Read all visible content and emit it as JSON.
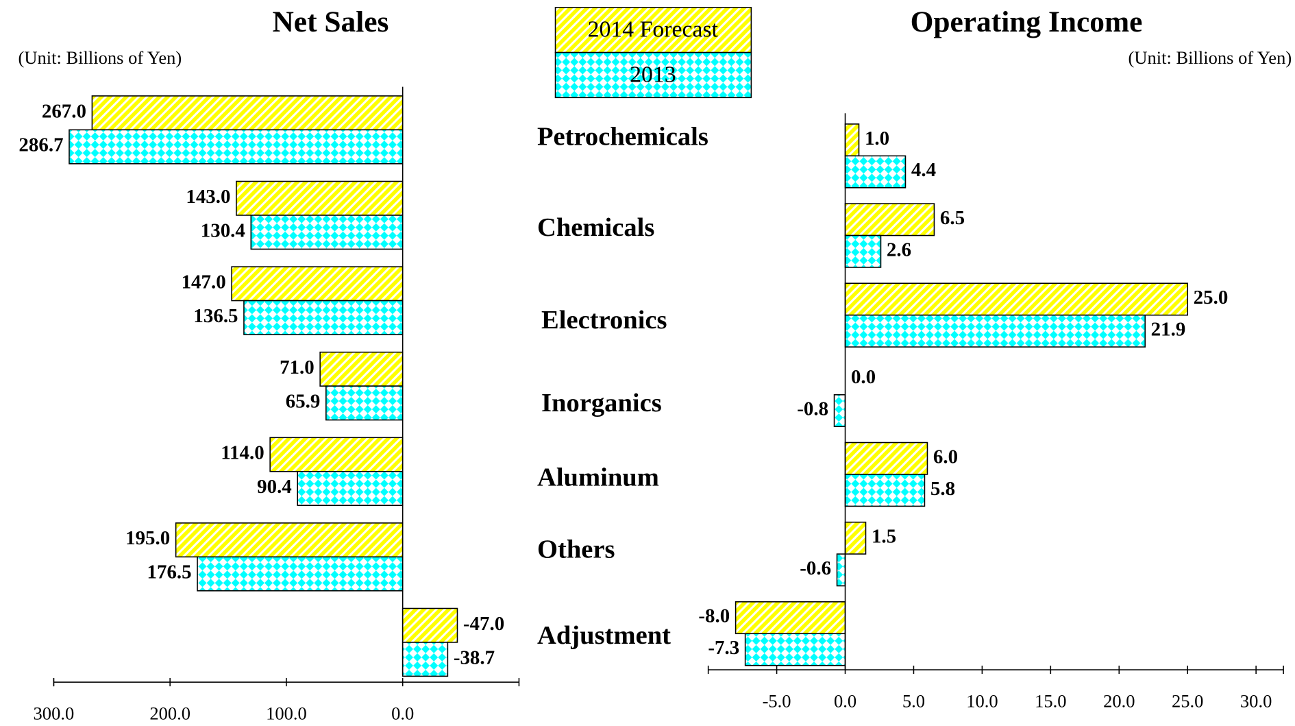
{
  "chart_data": [
    {
      "type": "barh",
      "title": "Net Sales",
      "subtitle": "(Unit: Billions of Yen)",
      "categories": [
        "Petrochemicals",
        "Chemicals",
        "Electronics",
        "Inorganics",
        "Aluminum",
        "Others",
        "Adjustment"
      ],
      "series": [
        {
          "name": "2014 Forecast",
          "color": "#ffff00",
          "pattern": "hatch",
          "values": [
            267,
            143,
            147,
            71,
            114,
            195,
            -47
          ],
          "value_labels": [
            "267.0",
            "143.0",
            "147.0",
            "71.0",
            "114.0",
            "195.0",
            "-47.0"
          ]
        },
        {
          "name": "2013",
          "color": "#00ffff",
          "pattern": "diamond",
          "values": [
            286.7,
            130.4,
            136.5,
            65.9,
            90.4,
            176.5,
            -38.7
          ],
          "value_labels": [
            "286.7",
            "130.4",
            "136.5",
            "65.9",
            "90.4",
            "176.5",
            "-38.7"
          ]
        }
      ],
      "xlim": [
        300,
        -100
      ],
      "xticks": [
        {
          "value": 300,
          "label": "300.0"
        },
        {
          "value": 200,
          "label": "200.0"
        },
        {
          "value": 100,
          "label": "100.0"
        },
        {
          "value": 0,
          "label": "0.0"
        }
      ]
    },
    {
      "type": "barh",
      "title": "Operating Income",
      "subtitle": "(Unit: Billions of Yen)",
      "series": [
        {
          "color": "#ffff00",
          "pattern": "hatch",
          "values": [
            1,
            6.5,
            25,
            0,
            6,
            1.5,
            -8
          ],
          "value_labels": [
            "1.0",
            "6.5",
            "25.0",
            "0.0",
            "6.0",
            "1.5",
            "-8.0"
          ]
        },
        {
          "color": "#00ffff",
          "pattern": "diamond",
          "values": [
            4.4,
            2.6,
            21.9,
            -0.8,
            5.8,
            -0.6,
            -7.3
          ],
          "value_labels": [
            "4.4",
            "2.6",
            "21.9",
            "-0.8",
            "5.8",
            "-0.6",
            "-7.3"
          ]
        }
      ],
      "xlim": [
        -10,
        32
      ],
      "xticks": [
        {
          "value": -5,
          "label": "-5.0"
        },
        {
          "value": 0,
          "label": "0.0"
        },
        {
          "value": 5,
          "label": "5.0"
        },
        {
          "value": 10,
          "label": "10.0"
        },
        {
          "value": 15,
          "label": "15.0"
        },
        {
          "value": 20,
          "label": "20.0"
        },
        {
          "value": 25,
          "label": "25.0"
        },
        {
          "value": 30,
          "label": "30.0"
        }
      ]
    }
  ]
}
